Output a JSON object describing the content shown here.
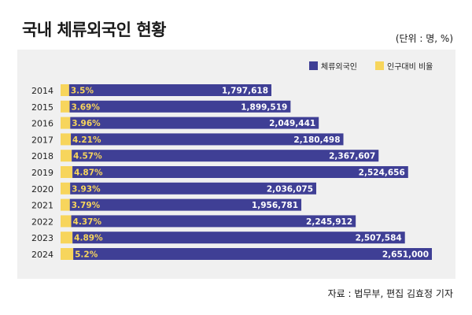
{
  "title": "국내 체류외국인 현황",
  "unit": "(단위 : 명, %)",
  "source": "자료 : 법무부,  편집 김효정 기자",
  "colors": {
    "foreigners": "#3f3f95",
    "ratio": "#f7d55c",
    "panel": "#f0f0f0"
  },
  "chart_data": {
    "type": "bar",
    "orientation": "horizontal",
    "stacked": true,
    "categories": [
      "2014",
      "2015",
      "2016",
      "2017",
      "2018",
      "2019",
      "2020",
      "2021",
      "2022",
      "2023",
      "2024"
    ],
    "series": [
      {
        "name": "인구대비 비율",
        "color": "#f7d55c",
        "values": [
          3.5,
          3.69,
          3.96,
          4.21,
          4.57,
          4.87,
          3.93,
          3.79,
          4.37,
          4.89,
          5.2
        ],
        "labels": [
          "3.5%",
          "3.69%",
          "3.96%",
          "4.21%",
          "4.57%",
          "4.87%",
          "3.93%",
          "3.79%",
          "4.37%",
          "4.89%",
          "5.2%"
        ]
      },
      {
        "name": "체류외국인",
        "color": "#3f3f95",
        "values": [
          1797618,
          1899519,
          2049441,
          2180498,
          2367607,
          2524656,
          2036075,
          1956781,
          2245912,
          2507584,
          2651000
        ],
        "labels": [
          "1,797,618",
          "1,899,519",
          "2,049,441",
          "2,180,498",
          "2,367,607",
          "2,524,656",
          "2,036,075",
          "1,956,781",
          "2,245,912",
          "2,507,584",
          "2,651,000"
        ]
      }
    ],
    "legend_position": "top-right",
    "grid": false
  }
}
